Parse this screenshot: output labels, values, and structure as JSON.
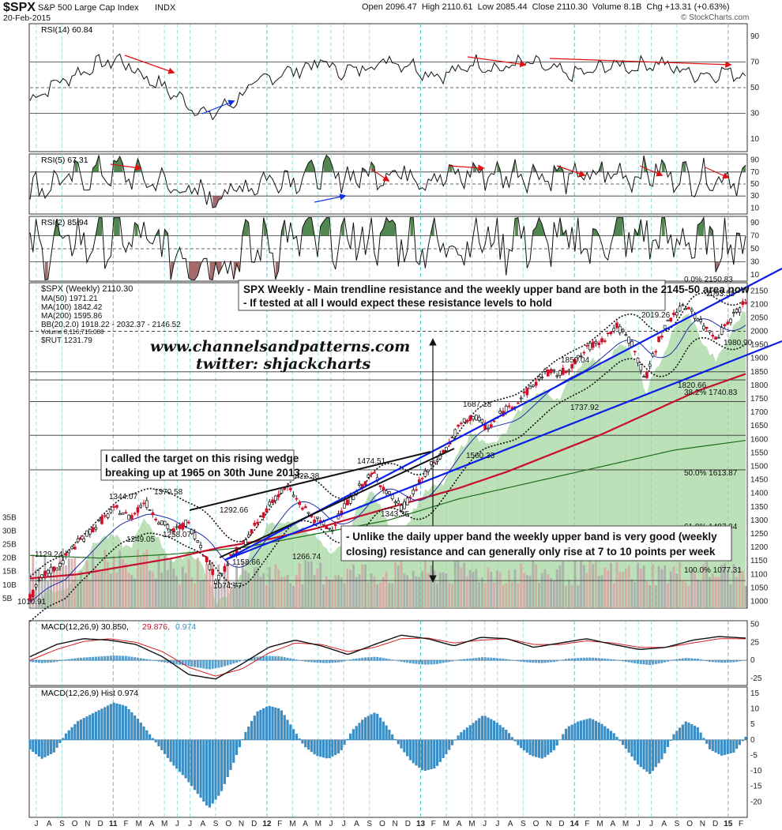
{
  "header": {
    "symbol": "$SPX",
    "name": "S&P 500 Large Cap Index",
    "exchange": "INDX",
    "date": "20-Feb-2015",
    "ohlc": "Open 2096.47  High 2110.61  Low 2085.44  Close 2110.30  Volume 8.1B  Chg +13.31 (+0.63%)",
    "copyright": "© StockCharts.com"
  },
  "panels": {
    "rsi14": {
      "label": "RSI(14) 60.84",
      "ticks": [
        "90",
        "70",
        "50",
        "30",
        "10"
      ]
    },
    "rsi5": {
      "label": "RSI(5) 67.31",
      "ticks": [
        "90",
        "70",
        "50",
        "30",
        "10"
      ]
    },
    "rsi2": {
      "label": "RSI(2) 85.94",
      "ticks": [
        "90",
        "70",
        "50",
        "30",
        "10"
      ]
    },
    "macd": {
      "label_a": "MACD(12,26,9) 30.850,",
      "label_b": "29.876,",
      "label_c": "0.974",
      "ticks": [
        "50",
        "25",
        "0",
        "-25"
      ]
    },
    "hist": {
      "label": "MACD(12,26,9) Hist 0.974",
      "ticks": [
        "15",
        "10",
        "5",
        "0",
        "-5",
        "-10",
        "-15",
        "-20"
      ]
    }
  },
  "price_legend": {
    "main": "$SPX (Weekly) 2110.30",
    "ma50": "MA(50) 1971.21",
    "ma100": "MA(100) 1842.42",
    "ma200": "MA(200) 1595.86",
    "bb": "BB(20,2.0) 1918.22 - 2032.37 - 2146.52",
    "volume": "Volume 8,116,715,008",
    "rut": "$RUT 1231.79"
  },
  "price_ticks": [
    "2150",
    "2100",
    "2050",
    "2000",
    "1950",
    "1900",
    "1850",
    "1800",
    "1750",
    "1700",
    "1650",
    "1600",
    "1550",
    "1500",
    "1450",
    "1400",
    "1350",
    "1300",
    "1250",
    "1200",
    "1150",
    "1100",
    "1050",
    "1000"
  ],
  "volume_ticks": [
    "35B",
    "30B",
    "25B",
    "20B",
    "15B",
    "10B",
    "5B"
  ],
  "annotations": {
    "top_note_l1": "SPX Weekly - Main trendline resistance and the weekly upper band are both in the 2145-50 area now",
    "top_note_l2": "- If tested at all I would expect these resistance levels to hold",
    "wedge_note_l1": "I called the target on this rising wedge",
    "wedge_note_l2": "breaking up at 1965 on 30th June 2013",
    "band_note_l1": "- Unlike the daily upper band the weekly upper band is very good (weekly",
    "band_note_l2": "closing) resistance and can generally only rise at 7 to 10 points per week",
    "website": "www.channelsandpatterns.com",
    "twitter": "twitter: shjackcharts"
  },
  "fib_labels": [
    "0.0% 2150.83",
    "38.2% 1740.83",
    "50.0% 1613.87",
    "61.8% 1487.34",
    "100.0% 1077.31"
  ],
  "price_labels": [
    "1010.91",
    "1129.24",
    "1249.05",
    "1344.07",
    "1370.58",
    "1258.07",
    "1292.66",
    "1158.66",
    "1074.77",
    "1422.38",
    "1266.74",
    "1474.51",
    "1343.35",
    "1560.33",
    "1687.18",
    "1737.92",
    "1850.04",
    "2019.26",
    "2093.55",
    "1980.90",
    "1820.66"
  ],
  "x_axis_labels": [
    "J",
    "A",
    "S",
    "O",
    "N",
    "D",
    "11",
    "F",
    "M",
    "A",
    "M",
    "J",
    "J",
    "A",
    "S",
    "O",
    "N",
    "D",
    "12",
    "F",
    "M",
    "A",
    "M",
    "J",
    "J",
    "A",
    "S",
    "O",
    "N",
    "D",
    "13",
    "F",
    "M",
    "A",
    "M",
    "J",
    "J",
    "A",
    "S",
    "O",
    "N",
    "D",
    "14",
    "F",
    "M",
    "A",
    "M",
    "J",
    "J",
    "A",
    "S",
    "O",
    "N",
    "D",
    "15",
    "F"
  ],
  "colors": {
    "price_up": "#111111",
    "price_down": "#d0102a",
    "ma50": "#1f2fa8",
    "ma100": "#c8102e",
    "ma200": "#1a6e1a",
    "rut_area": "#9fd39a",
    "trend_channel": "#0a1ee6",
    "histogram": "#3a8ec4",
    "rsi_fill_high": "#3f7a3f",
    "rsi_fill_low": "#9b5a5a",
    "arrow_red": "#e01010",
    "arrow_blue": "#1030e0"
  },
  "chart_data": [
    {
      "type": "line",
      "title": "RSI(14)",
      "ylim": [
        0,
        100
      ],
      "series": [
        {
          "name": "RSI(14)",
          "values": [
            40,
            52,
            60,
            68,
            72,
            60,
            50,
            38,
            28,
            38,
            52,
            60,
            64,
            70,
            62,
            66,
            72,
            68,
            60,
            62,
            70,
            64,
            70,
            66,
            60,
            62,
            68,
            66,
            70,
            64,
            60,
            62,
            60.84
          ]
        }
      ]
    },
    {
      "type": "line",
      "title": "MACD(12,26,9)",
      "ylim": [
        -35,
        55
      ],
      "series": [
        {
          "name": "MACD",
          "values": [
            5,
            22,
            30,
            28,
            22,
            5,
            -20,
            -26,
            -5,
            18,
            28,
            20,
            8,
            22,
            35,
            30,
            20,
            32,
            30,
            18,
            24,
            30,
            22,
            15,
            18,
            28,
            33,
            30.85
          ]
        },
        {
          "name": "Signal",
          "values": [
            0,
            15,
            26,
            30,
            25,
            12,
            -10,
            -22,
            -12,
            10,
            24,
            22,
            12,
            18,
            30,
            31,
            24,
            28,
            30,
            22,
            22,
            27,
            24,
            18,
            18,
            24,
            30,
            29.876
          ]
        }
      ]
    },
    {
      "type": "bar",
      "title": "MACD(12,26,9) Hist",
      "ylim": [
        -25,
        15
      ],
      "values": [
        -3,
        -6,
        -4,
        2,
        6,
        8,
        10,
        12,
        11,
        7,
        2,
        -3,
        -8,
        -12,
        -17,
        -22,
        -17,
        -8,
        2,
        9,
        11,
        10,
        4,
        -2,
        -5,
        -6,
        -4,
        3,
        7,
        9,
        4,
        -2,
        -7,
        -10,
        -9,
        -4,
        2,
        5,
        8,
        6,
        3,
        -2,
        -5,
        -6,
        -3,
        4,
        6,
        7,
        5,
        2,
        -3,
        -8,
        -11,
        -6,
        2,
        6,
        4,
        -3,
        -5,
        -4,
        0.974
      ]
    },
    {
      "type": "line",
      "title": "$SPX (Weekly)",
      "ylim": [
        1000,
        2160
      ],
      "series": [
        {
          "name": "$SPX",
          "values": [
            1010.91,
            1100,
            1129.24,
            1200,
            1249.05,
            1300,
            1344.07,
            1310,
            1370.58,
            1300,
            1258.07,
            1292.66,
            1200,
            1074.77,
            1158.66,
            1220,
            1300,
            1380,
            1422.38,
            1350,
            1300,
            1266.74,
            1350,
            1420,
            1474.51,
            1400,
            1343.35,
            1420,
            1500,
            1560.33,
            1650,
            1687.18,
            1640,
            1700,
            1737.92,
            1790,
            1850.04,
            1840,
            1880,
            1940,
            1970,
            2019.26,
            1960,
            1820.66,
            1980,
            2070,
            2093.55,
            2020,
            1980.9,
            2050,
            2110.3
          ]
        },
        {
          "name": "MA(100)",
          "values": [
            1085,
            1100,
            1130,
            1160,
            1200,
            1230,
            1270,
            1320,
            1370,
            1420,
            1480,
            1550,
            1620,
            1700,
            1780,
            1842.42
          ]
        },
        {
          "name": "MA(200)",
          "values": [
            1170,
            1160,
            1175,
            1200,
            1250,
            1300,
            1380,
            1440,
            1500,
            1560,
            1595.86
          ]
        }
      ]
    }
  ]
}
